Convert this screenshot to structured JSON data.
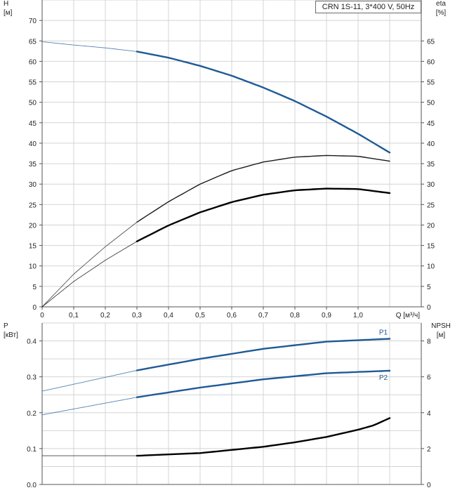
{
  "chart_data": [
    {
      "type": "line",
      "title": "CRN 1S-11, 3*400 V, 50Hz",
      "xlabel": "Q [м³/ч]",
      "ylabel": [
        "H",
        "[м]"
      ],
      "y2label": [
        "eta",
        "[%]"
      ],
      "xlim": [
        0,
        1.2
      ],
      "ylim": [
        0,
        75
      ],
      "y2lim": [
        0,
        75
      ],
      "x_ticks": [
        "0",
        "0,1",
        "0,2",
        "0,3",
        "0,4",
        "0,5",
        "0,6",
        "0,7",
        "0,8",
        "0,9",
        "1,0"
      ],
      "y_ticks": [
        "0",
        "5",
        "10",
        "15",
        "20",
        "25",
        "30",
        "35",
        "40",
        "45",
        "50",
        "55",
        "60",
        "65",
        "70"
      ],
      "y2_ticks": [
        "0",
        "5",
        "10",
        "15",
        "20",
        "25",
        "30",
        "35",
        "40",
        "45",
        "50",
        "55",
        "60",
        "65"
      ],
      "grid": true,
      "series": [
        {
          "role": "head",
          "color": "#1f5a96",
          "x": [
            0,
            0.1,
            0.2,
            0.3,
            0.4,
            0.5,
            0.6,
            0.7,
            0.8,
            0.9,
            1.0,
            1.1
          ],
          "y": [
            64.8,
            64.0,
            63.3,
            62.4,
            60.9,
            58.9,
            56.5,
            53.6,
            50.3,
            46.5,
            42.3,
            37.7
          ],
          "duty_start": 0.3
        },
        {
          "role": "efficiency-total",
          "color": "#1a1a1a",
          "x": [
            0,
            0.1,
            0.2,
            0.3,
            0.4,
            0.5,
            0.6,
            0.7,
            0.8,
            0.9,
            1.0,
            1.1
          ],
          "y": [
            0,
            8.0,
            14.7,
            20.7,
            25.7,
            30.0,
            33.3,
            35.4,
            36.6,
            37.0,
            36.8,
            35.6
          ],
          "duty_start": 0.3
        },
        {
          "role": "efficiency-pump",
          "color": "#000000",
          "x": [
            0,
            0.1,
            0.2,
            0.3,
            0.4,
            0.5,
            0.6,
            0.7,
            0.8,
            0.9,
            1.0,
            1.1
          ],
          "y": [
            0,
            6.2,
            11.4,
            16.0,
            19.9,
            23.1,
            25.6,
            27.4,
            28.5,
            28.9,
            28.8,
            27.8
          ],
          "duty_start": 0.3
        }
      ]
    },
    {
      "type": "line",
      "xlim": [
        0,
        1.2
      ],
      "ylabel": [
        "P",
        "[кВт]"
      ],
      "y2label": [
        "NPSH",
        "[м]"
      ],
      "ylim": [
        0,
        0.45
      ],
      "y2lim": [
        0,
        9
      ],
      "y_ticks": [
        "0.0",
        "0.1",
        "0.2",
        "0.3",
        "0.4"
      ],
      "y2_ticks": [
        "0",
        "2",
        "4",
        "6",
        "8"
      ],
      "grid": true,
      "series": [
        {
          "name": "P1",
          "axis": "left",
          "color": "#1f5a96",
          "x": [
            0,
            0.3,
            0.5,
            0.7,
            0.9,
            1.1
          ],
          "y": [
            0.26,
            0.318,
            0.35,
            0.378,
            0.398,
            0.406
          ],
          "duty_start": 0.3
        },
        {
          "name": "P2",
          "axis": "left",
          "color": "#1f5a96",
          "x": [
            0,
            0.3,
            0.5,
            0.7,
            0.9,
            1.1
          ],
          "y": [
            0.194,
            0.243,
            0.27,
            0.293,
            0.31,
            0.317
          ],
          "duty_start": 0.3
        },
        {
          "role": "npsh",
          "axis": "right",
          "color": "#000000",
          "x": [
            0,
            0.3,
            0.5,
            0.7,
            0.8,
            0.9,
            1.0,
            1.05,
            1.1
          ],
          "y": [
            1.6,
            1.6,
            1.75,
            2.1,
            2.35,
            2.65,
            3.05,
            3.3,
            3.7
          ],
          "duty_start": 0.3
        }
      ]
    }
  ]
}
